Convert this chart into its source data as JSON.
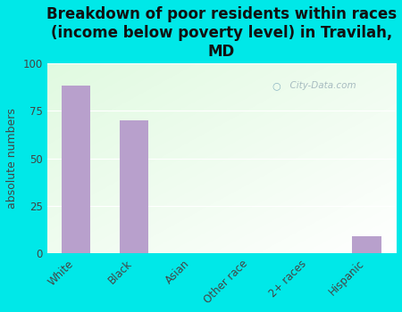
{
  "categories": [
    "White",
    "Black",
    "Asian",
    "Other race",
    "2+ races",
    "Hispanic"
  ],
  "values": [
    88,
    70,
    0,
    0,
    0,
    9
  ],
  "bar_color": "#b8a0cc",
  "title": "Breakdown of poor residents within races\n(income below poverty level) in Travilah,\nMD",
  "ylabel": "absolute numbers",
  "ylim": [
    0,
    100
  ],
  "yticks": [
    0,
    25,
    50,
    75,
    100
  ],
  "background_color": "#00e8e8",
  "watermark": "City-Data.com",
  "title_fontsize": 12,
  "ylabel_fontsize": 9,
  "tick_fontsize": 8.5
}
